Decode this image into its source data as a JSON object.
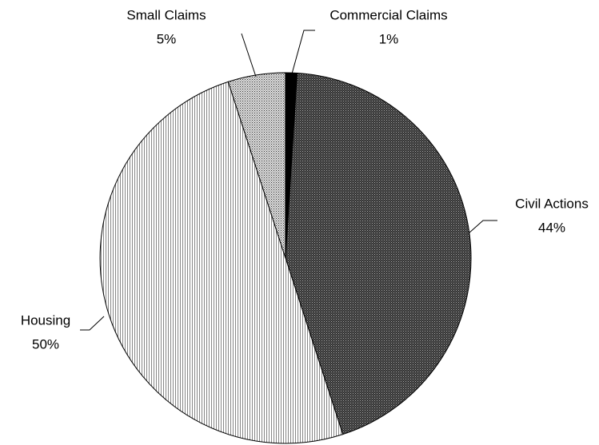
{
  "chart_data": {
    "type": "pie",
    "categories": [
      "Commercial Claims",
      "Civil Actions",
      "Housing",
      "Small Claims"
    ],
    "values": [
      1,
      44,
      50,
      5
    ],
    "value_labels": [
      "1%",
      "44%",
      "50%",
      "5%"
    ]
  }
}
